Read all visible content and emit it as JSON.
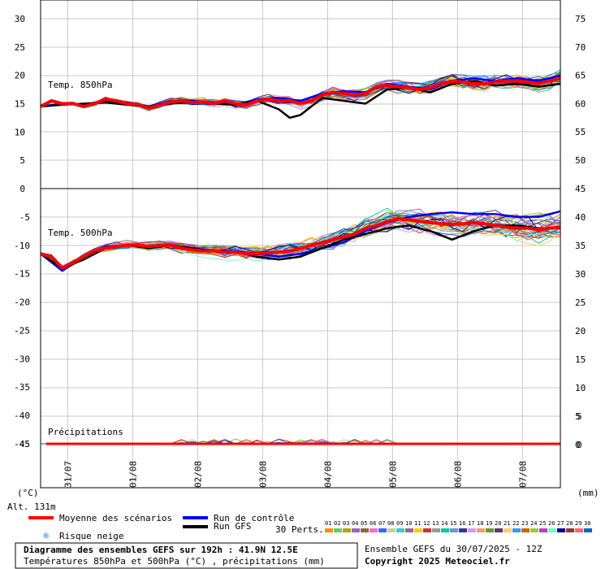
{
  "chart_data": {
    "type": "line",
    "panels": [
      {
        "label": "Temp. 850hPa",
        "ylim": [
          0,
          30
        ],
        "y_ticks_left": [
          "30",
          "25",
          "20",
          "15",
          "10",
          "5",
          "0"
        ],
        "y_ticks_right": [
          "75",
          "70",
          "65",
          "60",
          "55",
          "50"
        ],
        "series": [
          {
            "name": "Moyenne des scénarios",
            "x": [
              0,
              4,
              8,
              12,
              16,
              20,
              24,
              28,
              32,
              36,
              40,
              44,
              48,
              52,
              56,
              60,
              64,
              68,
              72,
              76,
              80,
              84,
              88,
              92,
              96,
              100,
              104,
              108,
              112,
              116,
              120,
              124,
              128,
              132,
              136,
              140,
              144,
              148,
              152,
              156,
              160,
              164,
              168,
              172,
              176,
              180,
              184,
              188,
              192
            ],
            "values": [
              14.5,
              15.5,
              15,
              15,
              14.5,
              15,
              15.8,
              15.5,
              15,
              14.8,
              14.2,
              14.8,
              15.3,
              15.5,
              15.2,
              15.3,
              15,
              15.5,
              15,
              14.8,
              15.5,
              15.8,
              15.5,
              15.5,
              15,
              15.5,
              16.5,
              17,
              16.8,
              16.5,
              16.8,
              18,
              18.2,
              18,
              17.8,
              17.5,
              17.8,
              18.5,
              19,
              18.8,
              18.5,
              18.5,
              18.8,
              19,
              19,
              18.8,
              18.5,
              19,
              19.5
            ]
          },
          {
            "name": "Run de contrôle",
            "x": [
              0,
              8,
              16,
              24,
              32,
              40,
              48,
              56,
              64,
              72,
              80,
              88,
              96,
              104,
              112,
              120,
              128,
              136,
              144,
              152,
              160,
              168,
              176,
              184,
              192
            ],
            "values": [
              14.5,
              15,
              14.8,
              15.5,
              15.2,
              14.5,
              15.5,
              15.5,
              15.2,
              14.8,
              15.8,
              16,
              15.5,
              16.8,
              17.2,
              17,
              18.5,
              18,
              17.5,
              19,
              19.5,
              19,
              19.5,
              19,
              20
            ]
          },
          {
            "name": "Run GFS",
            "x": [
              0,
              8,
              16,
              24,
              32,
              40,
              48,
              56,
              64,
              72,
              80,
              88,
              92,
              96,
              104,
              112,
              120,
              128,
              136,
              144,
              152,
              160,
              168,
              176,
              184,
              192
            ],
            "values": [
              14.5,
              14.8,
              15,
              15.2,
              14.8,
              14.5,
              15,
              15.3,
              15,
              14.8,
              15.5,
              14,
              12.5,
              13,
              16,
              15.5,
              15,
              17.5,
              17.8,
              17,
              18.5,
              19,
              18.2,
              18.5,
              18,
              18.5
            ]
          }
        ]
      },
      {
        "label": "Temp. 500hPa",
        "ylim": [
          -45,
          0
        ],
        "y_ticks_left": [
          "-5",
          "-10",
          "-15",
          "-20",
          "-25",
          "-30",
          "-35",
          "-40",
          "-45"
        ],
        "y_ticks_right": [
          "45",
          "40",
          "35",
          "30",
          "25",
          "20",
          "15",
          "10",
          "5",
          "0"
        ],
        "series": [
          {
            "name": "Moyenne des scénarios",
            "x": [
              0,
              4,
              8,
              12,
              16,
              20,
              24,
              28,
              32,
              36,
              40,
              44,
              48,
              52,
              56,
              60,
              64,
              68,
              72,
              76,
              80,
              84,
              88,
              92,
              96,
              100,
              104,
              108,
              112,
              116,
              120,
              124,
              128,
              132,
              136,
              140,
              144,
              148,
              152,
              156,
              160,
              164,
              168,
              172,
              176,
              180,
              184,
              188,
              192
            ],
            "values": [
              -11.5,
              -12,
              -14,
              -13,
              -12,
              -11,
              -10.5,
              -10.2,
              -10,
              -10,
              -10.2,
              -10,
              -10,
              -10.5,
              -10.8,
              -11,
              -11,
              -11.2,
              -11.2,
              -11.5,
              -11.5,
              -11.3,
              -11.2,
              -11,
              -10.5,
              -10,
              -9.5,
              -9,
              -8.5,
              -8,
              -7,
              -6.5,
              -5.8,
              -5.3,
              -5.5,
              -5.8,
              -6,
              -6.2,
              -6.3,
              -6.2,
              -6,
              -6.2,
              -6.5,
              -6.8,
              -7,
              -7,
              -7.2,
              -7,
              -6.8
            ]
          },
          {
            "name": "Run de contrôle",
            "x": [
              0,
              8,
              16,
              24,
              32,
              40,
              48,
              56,
              64,
              72,
              80,
              88,
              96,
              104,
              112,
              120,
              128,
              136,
              144,
              152,
              160,
              168,
              176,
              184,
              192
            ],
            "values": [
              -11.5,
              -14.5,
              -12,
              -10.2,
              -10,
              -10.2,
              -10,
              -10.8,
              -11,
              -11,
              -11.5,
              -12,
              -11.5,
              -10.5,
              -9.5,
              -7.5,
              -6,
              -5,
              -4.5,
              -4.2,
              -4.5,
              -4.5,
              -5,
              -5,
              -4
            ]
          },
          {
            "name": "Run GFS",
            "x": [
              0,
              8,
              16,
              24,
              32,
              40,
              48,
              56,
              64,
              72,
              80,
              88,
              96,
              104,
              112,
              120,
              128,
              136,
              144,
              152,
              160,
              168,
              176,
              184,
              192
            ],
            "values": [
              -11.5,
              -14,
              -12.5,
              -10.5,
              -10,
              -10.5,
              -10,
              -10.5,
              -11,
              -11.2,
              -12,
              -12.5,
              -12,
              -10.5,
              -9,
              -8,
              -7,
              -6.5,
              -7.5,
              -9,
              -7.5,
              -6.5,
              -6.5,
              -7,
              -7
            ]
          }
        ]
      },
      {
        "label": "Précipitations",
        "y_tick_left": "-45",
        "y_ticks_right": [
          "5",
          "0"
        ]
      }
    ],
    "x_tick_labels": [
      "31/07",
      "01/08",
      "02/08",
      "03/08",
      "04/08",
      "05/08",
      "06/08",
      "07/08"
    ],
    "left_unit": "(°C)",
    "right_unit": "(mm)",
    "altitude": "Alt. 131m",
    "grid": true
  },
  "legend": {
    "mean_label": "Moyenne des scénarios",
    "control_label": "Run de contrôle",
    "gfs_label": "Run GFS",
    "snow_label": "Risque neige",
    "perts_label": "30 Perts.",
    "pert_numbers": [
      "01",
      "02",
      "03",
      "04",
      "05",
      "06",
      "07",
      "08",
      "09",
      "10",
      "11",
      "12",
      "13",
      "14",
      "15",
      "16",
      "17",
      "18",
      "19",
      "20",
      "21",
      "22",
      "23",
      "24",
      "25",
      "26",
      "27",
      "28",
      "29",
      "30"
    ],
    "pert_colors": [
      "#ff8c00",
      "#66cc66",
      "#aaaa00",
      "#9966cc",
      "#996633",
      "#ff66cc",
      "#3366ff",
      "#cccc99",
      "#33cccc",
      "#996699",
      "#ffcc00",
      "#cc3333",
      "#999999",
      "#00cc99",
      "#6699cc",
      "#333399",
      "#cc99ff",
      "#ff9966",
      "#669933",
      "#663366",
      "#ffcc66",
      "#3399ff",
      "#cc6600",
      "#99cc33",
      "#cc33cc",
      "#66ffcc",
      "#000099",
      "#993333",
      "#ff6666",
      "#0066cc"
    ],
    "colors": {
      "mean": "#ff0000",
      "control": "#0000ff",
      "gfs": "#000000"
    }
  },
  "footer": {
    "title": "Diagramme des ensembles GEFS sur 192h : 41.9N 12.5E",
    "subtitle": "Températures 850hPa et 500hPa (°C) , précipitations (mm)",
    "run_info": "Ensemble GEFS du 30/07/2025 - 12Z",
    "copyright": "Copyright 2025 Meteociel.fr"
  }
}
